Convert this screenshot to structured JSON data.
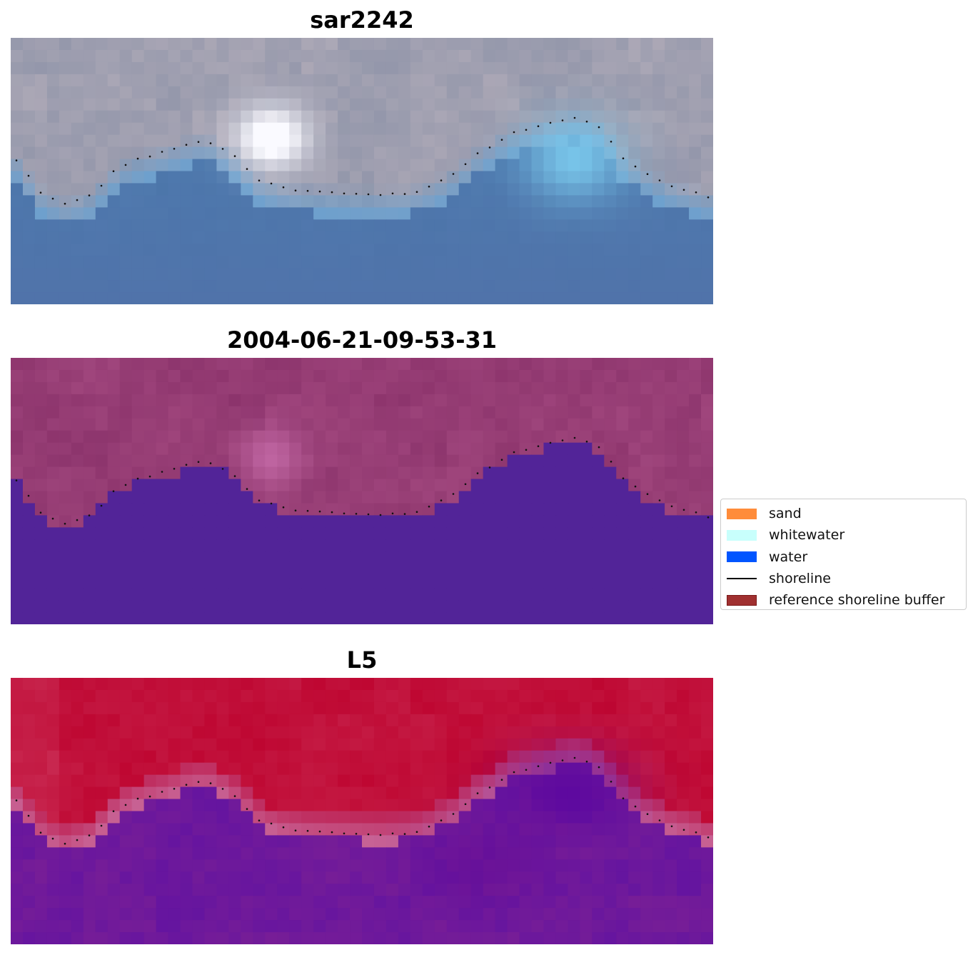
{
  "panels": [
    {
      "id": "rgb",
      "title": "sar2242"
    },
    {
      "id": "classified",
      "title": "2004-06-21-09-53-31"
    },
    {
      "id": "index",
      "title": "L5"
    }
  ],
  "legend": {
    "items": [
      {
        "label": "sand",
        "kind": "patch",
        "color": "#ff8c3a"
      },
      {
        "label": "whitewater",
        "kind": "patch",
        "color": "#c8fffc"
      },
      {
        "label": "water",
        "kind": "patch",
        "color": "#0055ff"
      },
      {
        "label": "shoreline",
        "kind": "line",
        "color": "#000000"
      },
      {
        "label": "reference shoreline buffer",
        "kind": "patch",
        "color": "#a03030",
        "edge": "#7a1818"
      }
    ]
  },
  "shoreline": {
    "style": "dotted",
    "color": "#000000"
  }
}
